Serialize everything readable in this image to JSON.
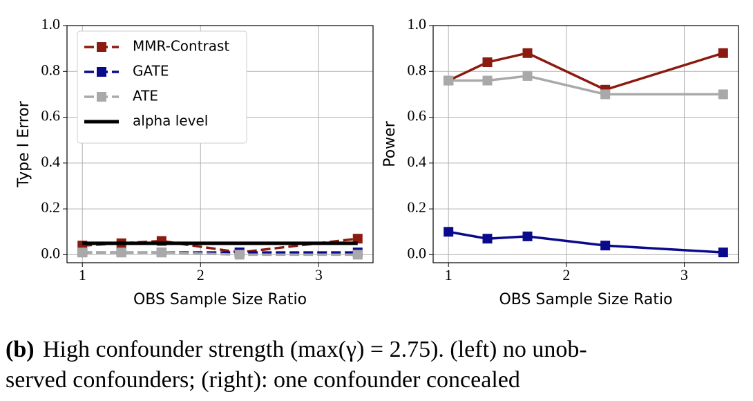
{
  "chart_data": [
    {
      "type": "line",
      "ylabel": "Type I Error",
      "xlabel": "OBS Sample Size Ratio",
      "x": [
        1,
        1.33,
        1.67,
        2.33,
        3.33
      ],
      "xlim": [
        0.87,
        3.46
      ],
      "ylim": [
        -0.035,
        1.0
      ],
      "xticks": [
        1,
        2,
        3
      ],
      "yticks": [
        {
          "value": 0,
          "label": "0.0"
        },
        {
          "value": 0.2,
          "label": "0.2"
        },
        {
          "value": 0.4,
          "label": "0.4"
        },
        {
          "value": 0.6,
          "label": "0.6"
        },
        {
          "value": 0.8,
          "label": "0.8"
        },
        {
          "value": 1,
          "label": "1.0"
        }
      ],
      "grid": true,
      "legend": "upper left",
      "dashed": true,
      "series": [
        {
          "name": "MMR-Contrast",
          "color": "#8b1a10",
          "values": [
            0.04,
            0.05,
            0.06,
            0.01,
            0.07
          ]
        },
        {
          "name": "GATE",
          "color": "#0a0a8c",
          "values": [
            0.01,
            0.01,
            0.01,
            0.01,
            0.01
          ]
        },
        {
          "name": "ATE",
          "color": "#a9a9a9",
          "values": [
            0.01,
            0.01,
            0.01,
            0.0,
            0.0
          ]
        },
        {
          "name": "alpha level",
          "color": "#000000",
          "values": [
            0.05,
            0.05,
            0.05,
            0.05,
            0.05
          ],
          "markers": false,
          "solid": true
        }
      ]
    },
    {
      "type": "line",
      "ylabel": "Power",
      "xlabel": "OBS Sample Size Ratio",
      "x": [
        1,
        1.33,
        1.67,
        2.33,
        3.33
      ],
      "xlim": [
        0.87,
        3.46
      ],
      "ylim": [
        -0.035,
        1.0
      ],
      "xticks": [
        1,
        2,
        3
      ],
      "yticks": [
        {
          "value": 0,
          "label": "0.0"
        },
        {
          "value": 0.2,
          "label": "0.2"
        },
        {
          "value": 0.4,
          "label": "0.4"
        },
        {
          "value": 0.6,
          "label": "0.6"
        },
        {
          "value": 0.8,
          "label": "0.8"
        },
        {
          "value": 1,
          "label": "1.0"
        }
      ],
      "grid": true,
      "dashed": false,
      "series": [
        {
          "name": "MMR-Contrast",
          "color": "#8b1a10",
          "values": [
            0.76,
            0.84,
            0.88,
            0.72,
            0.88
          ]
        },
        {
          "name": "GATE",
          "color": "#0a0a8c",
          "values": [
            0.1,
            0.07,
            0.08,
            0.04,
            0.01
          ]
        },
        {
          "name": "ATE",
          "color": "#a9a9a9",
          "values": [
            0.76,
            0.76,
            0.78,
            0.7,
            0.7
          ]
        }
      ]
    }
  ],
  "caption": {
    "label": "(b)",
    "lines": [
      "High confounder strength (max(γ) = 2.75). (left) no unob-",
      "served confounders; (right): one confounder concealed"
    ]
  }
}
